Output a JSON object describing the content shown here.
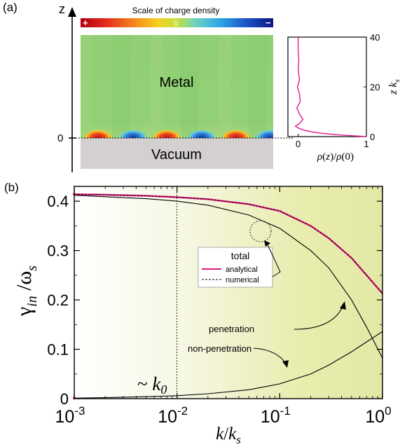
{
  "panel_a": {
    "label": "(a)",
    "z_axis_label": "z",
    "zero_label": "0",
    "scale_title": "Scale of charge density",
    "scale_plus": "+",
    "scale_minus": "−",
    "scale_zero": "0",
    "metal_label": "Metal",
    "vacuum_label": "Vacuum",
    "colors": {
      "metal_green": "#8fcf73",
      "vacuum_gray": "#d3d0cf",
      "profile_line": "#e8168c"
    }
  },
  "panel_b": {
    "label": "(b)",
    "ylabel": "γ_in / ω_s",
    "xlabel": "k/k_s",
    "k0_annotation": "~ k0",
    "legend": {
      "title": "total",
      "analytical": "analytical",
      "numerical": "numerical"
    },
    "annotations": {
      "penetration": "penetration",
      "non_penetration": "non-penetration"
    },
    "colors": {
      "analytical": "#e0197d",
      "numerical": "#000000",
      "components": "#000000",
      "bg_yellow": "#e6eaa2"
    }
  },
  "chart_data": [
    {
      "type": "line",
      "title": "",
      "xlabel": "ρ(z)/ρ(0)",
      "ylabel": "z k_s",
      "xlim": [
        -0.15,
        1
      ],
      "ylim": [
        0,
        40
      ],
      "x_ticks": [
        "0",
        "1"
      ],
      "y_ticks": [
        "0",
        "20",
        "40"
      ],
      "series": [
        {
          "x": [
            1.0,
            0.82,
            0.55,
            0.3,
            0.12,
            0.02,
            -0.04,
            0.03,
            0.07,
            0.02,
            -0.02,
            0.03,
            0.02,
            -0.01,
            0.02,
            0.0,
            0.01,
            0.0,
            0.0
          ],
          "y": [
            0,
            0.3,
            0.8,
            1.5,
            2.3,
            3.2,
            4.2,
            5.5,
            7.0,
            9.0,
            11.5,
            14.0,
            17.0,
            20.0,
            23.0,
            27.0,
            31.0,
            35.0,
            40.0
          ]
        }
      ]
    },
    {
      "type": "line",
      "title": "",
      "xlabel": "k/k_s",
      "ylabel": "γ_in/ω_s",
      "x_scale": "log",
      "xlim": [
        0.001,
        1
      ],
      "ylim": [
        0,
        0.43
      ],
      "x_ticks": [
        "10",
        "10",
        "10",
        "10"
      ],
      "x_tick_exponents": [
        "-3",
        "-2",
        "-1",
        "0"
      ],
      "y_ticks": [
        "0",
        "0.1",
        "0.2",
        "0.3",
        "0.4"
      ],
      "vline_x": 0.01,
      "x": [
        0.001,
        0.002,
        0.005,
        0.01,
        0.02,
        0.05,
        0.1,
        0.2,
        0.3,
        0.5,
        0.7,
        1.0
      ],
      "series": [
        {
          "name": "analytical",
          "values": [
            0.414,
            0.413,
            0.411,
            0.408,
            0.404,
            0.394,
            0.38,
            0.35,
            0.325,
            0.285,
            0.25,
            0.213
          ]
        },
        {
          "name": "numerical",
          "values": [
            0.414,
            0.413,
            0.411,
            0.408,
            0.404,
            0.394,
            0.38,
            0.35,
            0.325,
            0.285,
            0.25,
            0.213
          ]
        },
        {
          "name": "penetration",
          "values": [
            0.412,
            0.409,
            0.405,
            0.4,
            0.392,
            0.372,
            0.345,
            0.3,
            0.265,
            0.2,
            0.145,
            0.082
          ]
        },
        {
          "name": "non-penetration",
          "values": [
            0.001,
            0.002,
            0.004,
            0.006,
            0.01,
            0.018,
            0.03,
            0.05,
            0.068,
            0.095,
            0.115,
            0.136
          ]
        }
      ]
    }
  ]
}
